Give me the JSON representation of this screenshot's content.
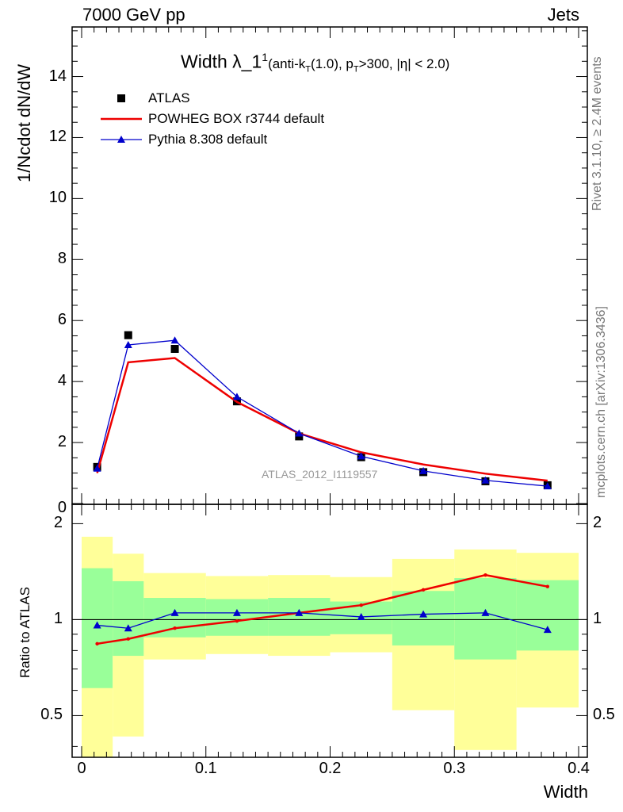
{
  "header": {
    "left": "7000 GeV pp",
    "right": "Jets"
  },
  "side_text": {
    "rivet": "Rivet 3.1.10, ≥ 2.4M events",
    "mcplots": "mcplots.cern.ch [arXiv:1306.3436]"
  },
  "watermark": "ATLAS_2012_I1119557",
  "chart_data": [
    {
      "type": "line",
      "title_main": "Width λ_1",
      "title_sup": "1",
      "title_detail_parts": [
        "(anti-k",
        "T",
        "(1.0), p",
        "T",
        ">300, |η| < 2.0)"
      ],
      "ylabel": "1/Ncdot dN/dW",
      "xlim": [
        0,
        0.4
      ],
      "ylim": [
        0,
        15.6
      ],
      "yticks": [
        0,
        2,
        4,
        6,
        8,
        10,
        12,
        14
      ],
      "legend_position": "top-left",
      "x": [
        0.0125,
        0.0375,
        0.075,
        0.125,
        0.175,
        0.225,
        0.275,
        0.325,
        0.375
      ],
      "series": [
        {
          "name": "ATLAS",
          "color": "#000000",
          "marker": "square",
          "values": [
            1.2,
            5.52,
            5.07,
            3.35,
            2.2,
            1.52,
            1.03,
            0.73,
            0.6
          ]
        },
        {
          "name": "POWHEG BOX r3744 default",
          "color": "#ee0000",
          "marker": "line",
          "values": [
            1.0,
            4.63,
            4.77,
            3.33,
            2.3,
            1.68,
            1.28,
            0.98,
            0.75
          ]
        },
        {
          "name": "Pythia 8.308 default",
          "color": "#0000cc",
          "marker": "triangle",
          "values": [
            1.15,
            5.2,
            5.35,
            3.5,
            2.3,
            1.55,
            1.07,
            0.76,
            0.57
          ]
        }
      ]
    },
    {
      "type": "line",
      "ylabel": "Ratio to ATLAS",
      "xlabel": "Width",
      "xlim": [
        0,
        0.4
      ],
      "ylim": [
        0.37,
        2.3
      ],
      "log_y": true,
      "yticks": [
        0.5,
        1,
        2
      ],
      "xticks": [
        0,
        0.1,
        0.2,
        0.3,
        0.4
      ],
      "reference_line": 1,
      "x": [
        0.0125,
        0.0375,
        0.075,
        0.125,
        0.175,
        0.225,
        0.275,
        0.325,
        0.375
      ],
      "bins": [
        [
          0,
          0.025
        ],
        [
          0.025,
          0.05
        ],
        [
          0.05,
          0.1
        ],
        [
          0.1,
          0.15
        ],
        [
          0.15,
          0.2
        ],
        [
          0.2,
          0.25
        ],
        [
          0.25,
          0.3
        ],
        [
          0.3,
          0.35
        ],
        [
          0.35,
          0.4
        ]
      ],
      "band_green": [
        [
          0.61,
          1.45
        ],
        [
          0.77,
          1.32
        ],
        [
          0.88,
          1.17
        ],
        [
          0.89,
          1.16
        ],
        [
          0.89,
          1.17
        ],
        [
          0.9,
          1.14
        ],
        [
          0.83,
          1.23
        ],
        [
          0.75,
          1.35
        ],
        [
          0.8,
          1.33
        ]
      ],
      "band_yellow": [
        [
          0.37,
          1.82
        ],
        [
          0.43,
          1.61
        ],
        [
          0.75,
          1.4
        ],
        [
          0.78,
          1.37
        ],
        [
          0.77,
          1.38
        ],
        [
          0.79,
          1.36
        ],
        [
          0.52,
          1.55
        ],
        [
          0.39,
          1.66
        ],
        [
          0.53,
          1.62
        ]
      ],
      "colors": {
        "green": "#99ff99",
        "yellow": "#ffff99"
      },
      "series": [
        {
          "name": "POWHEG BOX r3744 default",
          "color": "#ee0000",
          "values": [
            0.84,
            0.87,
            0.94,
            0.99,
            1.05,
            1.11,
            1.24,
            1.38,
            1.27
          ]
        },
        {
          "name": "Pythia 8.308 default",
          "color": "#0000cc",
          "values": [
            0.96,
            0.94,
            1.05,
            1.05,
            1.05,
            1.02,
            1.04,
            1.05,
            0.93
          ]
        }
      ]
    }
  ]
}
